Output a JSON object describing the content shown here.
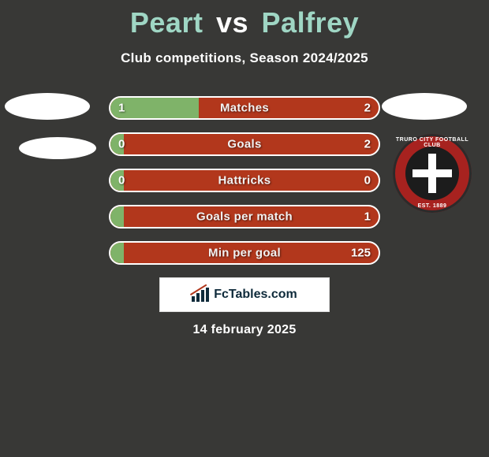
{
  "title": {
    "player1": "Peart",
    "vs": "vs",
    "player2": "Palfrey"
  },
  "subtitle": "Club competitions, Season 2024/2025",
  "colors": {
    "background": "#383836",
    "title_player": "#9fd6c4",
    "bar_left_fill": "#7fb369",
    "bar_right_fill": "#b2371c",
    "bar_border": "#ffffff",
    "text": "#ffffff",
    "logo_dark": "#0e2a3a",
    "logo_accent": "#b2371c",
    "badge_red": "#a7221f"
  },
  "bars": [
    {
      "label": "Matches",
      "left": "1",
      "right": "2",
      "left_pct": 33
    },
    {
      "label": "Goals",
      "left": "0",
      "right": "2",
      "left_pct": 5
    },
    {
      "label": "Hattricks",
      "left": "0",
      "right": "0",
      "left_pct": 5
    },
    {
      "label": "Goals per match",
      "left": "",
      "right": "1",
      "left_pct": 5
    },
    {
      "label": "Min per goal",
      "left": "",
      "right": "125",
      "left_pct": 5
    }
  ],
  "logo_text": "FcTables.com",
  "date": "14 february 2025",
  "badge": {
    "top_text": "TRURO CITY FOOTBALL CLUB",
    "bottom_text": "EST. 1889"
  }
}
